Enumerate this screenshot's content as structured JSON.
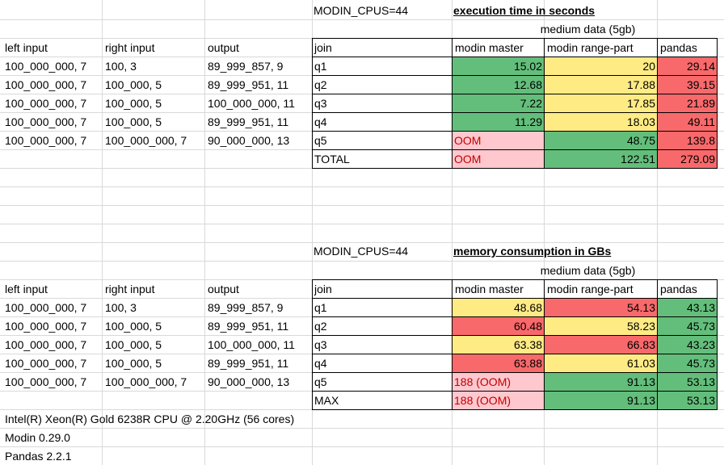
{
  "top": {
    "env": "MODIN_CPUS=44",
    "title": "execution time in seconds",
    "subheader": "medium data (5gb)",
    "left_headers": [
      "left input",
      "right input",
      "output"
    ],
    "left_rows": [
      [
        "100_000_000, 7",
        "100, 3",
        "89_999_857, 9"
      ],
      [
        "100_000_000, 7",
        "100_000, 5",
        "89_999_951, 11"
      ],
      [
        "100_000_000, 7",
        "100_000, 5",
        "100_000_000, 11"
      ],
      [
        "100_000_000, 7",
        "100_000, 5",
        "89_999_951, 11"
      ],
      [
        "100_000_000, 7",
        "100_000_000, 7",
        "90_000_000, 13"
      ]
    ],
    "table_headers": [
      "join",
      "modin master",
      "modin range-part",
      "pandas"
    ],
    "table_rows": [
      {
        "join": "q1",
        "master": "15.02",
        "range": "20",
        "pandas": "29.14"
      },
      {
        "join": "q2",
        "master": "12.68",
        "range": "17.88",
        "pandas": "39.15"
      },
      {
        "join": "q3",
        "master": "7.22",
        "range": "17.85",
        "pandas": "21.89"
      },
      {
        "join": "q4",
        "master": "11.29",
        "range": "18.03",
        "pandas": "49.11"
      },
      {
        "join": "q5",
        "master": "OOM",
        "range": "48.75",
        "pandas": "139.8"
      },
      {
        "join": "TOTAL",
        "master": "OOM",
        "range": "122.51",
        "pandas": "279.09"
      }
    ]
  },
  "bottom": {
    "env": "MODIN_CPUS=44",
    "title": "memory consumption in GBs",
    "subheader": "medium data (5gb)",
    "left_headers": [
      "left input",
      "right input",
      "output"
    ],
    "left_rows": [
      [
        "100_000_000, 7",
        "100, 3",
        "89_999_857, 9"
      ],
      [
        "100_000_000, 7",
        "100_000, 5",
        "89_999_951, 11"
      ],
      [
        "100_000_000, 7",
        "100_000, 5",
        "100_000_000, 11"
      ],
      [
        "100_000_000, 7",
        "100_000, 5",
        "89_999_951, 11"
      ],
      [
        "100_000_000, 7",
        "100_000_000, 7",
        "90_000_000, 13"
      ]
    ],
    "table_headers": [
      "join",
      "modin master",
      "modin range-part",
      "pandas"
    ],
    "table_rows": [
      {
        "join": "q1",
        "master": "48.68",
        "range": "54.13",
        "pandas": "43.13"
      },
      {
        "join": "q2",
        "master": "60.48",
        "range": "58.23",
        "pandas": "45.73"
      },
      {
        "join": "q3",
        "master": "63.38",
        "range": "66.83",
        "pandas": "43.23"
      },
      {
        "join": "q4",
        "master": "63.88",
        "range": "61.03",
        "pandas": "45.73"
      },
      {
        "join": "q5",
        "master": "188 (OOM)",
        "range": "91.13",
        "pandas": "53.13"
      },
      {
        "join": "MAX",
        "master": "188 (OOM)",
        "range": "91.13",
        "pandas": "53.13"
      }
    ]
  },
  "footer": {
    "cpu": "Intel(R) Xeon(R) Gold 6238R CPU @ 2.20GHz (56 cores)",
    "modin": "Modin 0.29.0",
    "pandas": "Pandas 2.2.1"
  },
  "colors": {
    "green": "#63be7b",
    "yellow": "#ffeb84",
    "red": "#f8696b",
    "pink": "#ffc7ce",
    "oom_text": "#c00000",
    "gridline": "#d9d9d9"
  }
}
